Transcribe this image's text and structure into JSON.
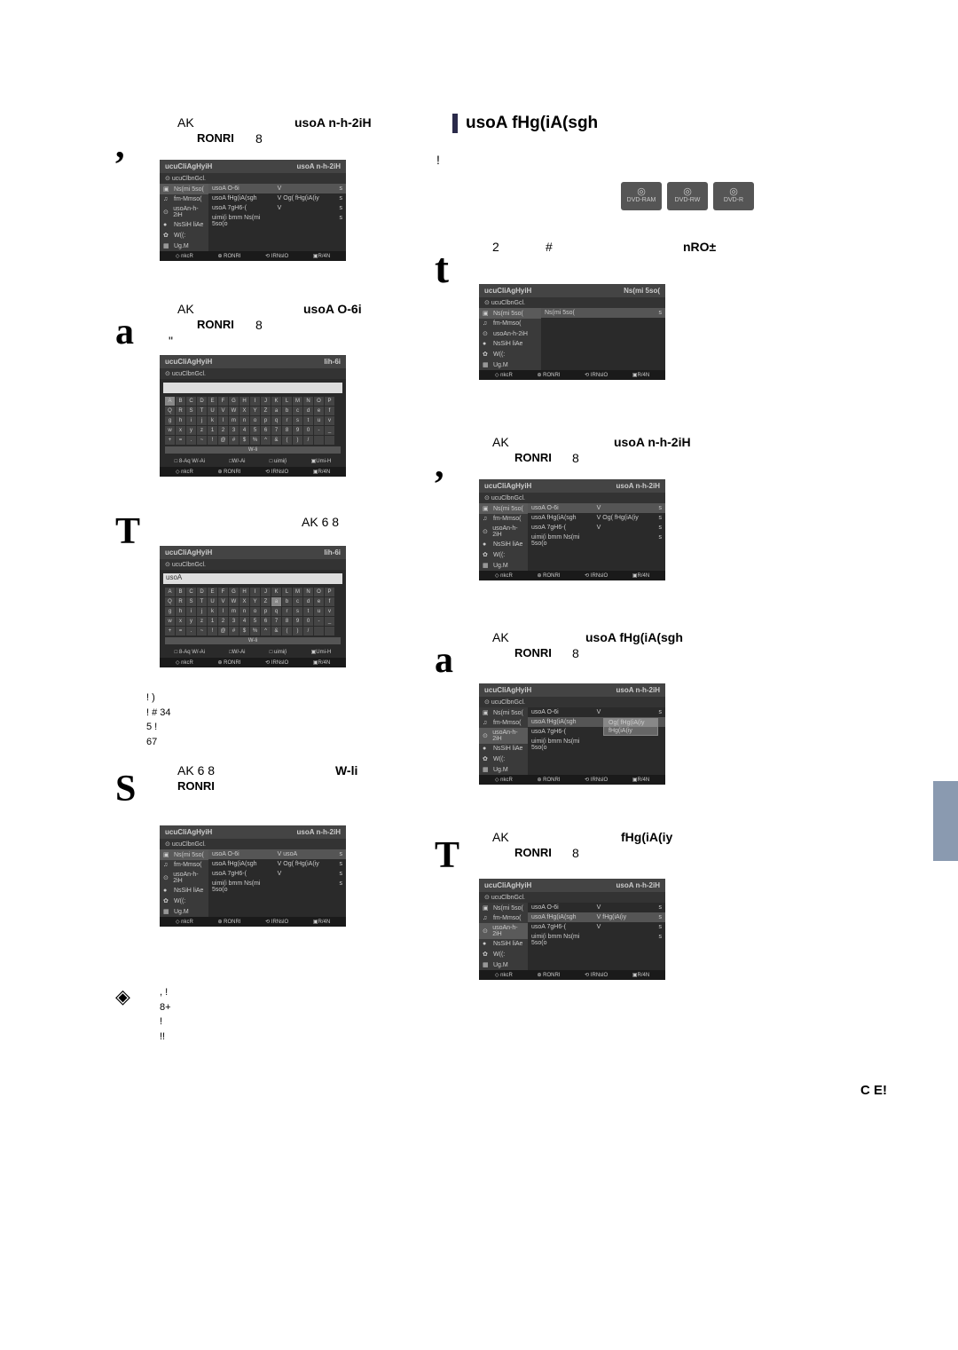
{
  "left": {
    "step2": {
      "marker": ",",
      "line1a": "AK",
      "line1b": "usoA n-h-2iH",
      "press": "RONRI",
      "press_after": "8"
    },
    "step3": {
      "marker": "a",
      "line1a": "AK",
      "line1b": "usoA O-6i",
      "press": "RONRI",
      "press_after": "8",
      "quote": "\""
    },
    "step4": {
      "marker": "T",
      "line": "AK 6 8"
    },
    "note_lines": [
      "!                )",
      "!                    #    34",
      "5        !",
      "67"
    ],
    "step5": {
      "marker": "S",
      "line1a": "AK 6 8",
      "line1b": "W-li",
      "press": "RONRI"
    },
    "tip": {
      "icon": "◈",
      "lines": [
        ",                           !",
        "8+",
        "!",
        "!!"
      ]
    }
  },
  "right": {
    "section_title": "usoA fHg(iA(sgh",
    "intro_excl": "!",
    "step1": {
      "marker": "t",
      "a": "2",
      "b": "#",
      "c": "nRO±"
    },
    "step2": {
      "marker": ",",
      "line1a": "AK",
      "line1b": "usoA n-h-2iH",
      "press": "RONRI",
      "press_after": "8"
    },
    "step3": {
      "marker": "a",
      "line1a": "AK",
      "line1b": "usoA fHg(iA(sgh",
      "press": "RONRI",
      "press_after": "8"
    },
    "step4": {
      "marker": "T",
      "line1a": "AK",
      "line1b": "fHg(iA(iy",
      "press": "RONRI",
      "press_after": "8"
    },
    "discs": [
      "DVD-RAM",
      "DVD-RW",
      "DVD-R"
    ]
  },
  "panel": {
    "title": "ucuCliAgHyiH",
    "sub": "ucuClbnGcl.",
    "side_items": [
      {
        "icon": "▣",
        "label": "Ns(mi 5so("
      },
      {
        "icon": "♫",
        "label": "fm-Mmso("
      },
      {
        "icon": "⊙",
        "label": "usoAn-h-2iH"
      },
      {
        "icon": "●",
        "label": "NsSiH liAe"
      },
      {
        "icon": "✿",
        "label": "W((:"
      },
      {
        "icon": "▦",
        "label": "Ug.M"
      }
    ],
    "opts": [
      {
        "label": "usoA O-6i",
        "val": "V",
        "end": "s"
      },
      {
        "label": "usoA fHg(iA(sgh",
        "val": "V Og( fHg(iA(iy",
        "end": "s"
      },
      {
        "label": "usoA 7gH6-(",
        "val": "V",
        "end": "s"
      },
      {
        "label": "uimi(i bmm Ns(mi 5so(o",
        "val": "",
        "end": "s"
      }
    ],
    "opts_name": [
      {
        "label": "usoA O-6i",
        "val": "V usoA",
        "end": "s"
      },
      {
        "label": "usoA fHg(iA(sgh",
        "val": "V Og( fHg(iA(iy",
        "end": "s"
      },
      {
        "label": "usoA 7gH6-(",
        "val": "V",
        "end": "s"
      },
      {
        "label": "uimi(i bmm Ns(mi 5so(o",
        "val": "",
        "end": "s"
      }
    ],
    "foot": [
      "◇ nkcR",
      "⊕ RONRI",
      "⟲ IRNslO",
      "▣R/4N"
    ],
    "header_r1": "usoA n-h-2iH",
    "header_r2": "lih-6i",
    "header_r3": "Ns(mi 5so("
  },
  "kbd": {
    "row1": [
      "A",
      "B",
      "C",
      "D",
      "E",
      "F",
      "G",
      "H",
      "I",
      "J",
      "K",
      "L",
      "M",
      "N",
      "O",
      "P"
    ],
    "row2": [
      "Q",
      "R",
      "S",
      "T",
      "U",
      "V",
      "W",
      "X",
      "Y",
      "Z",
      "a",
      "b",
      "c",
      "d",
      "e",
      "f"
    ],
    "row3": [
      "g",
      "h",
      "i",
      "j",
      "k",
      "l",
      "m",
      "n",
      "o",
      "p",
      "q",
      "r",
      "s",
      "t",
      "u",
      "v"
    ],
    "row4": [
      "w",
      "x",
      "y",
      "z",
      "1",
      "2",
      "3",
      "4",
      "5",
      "6",
      "7",
      "8",
      "9",
      "0",
      "-",
      "_"
    ],
    "row5": [
      "+",
      "=",
      ".",
      "~",
      "!",
      "@",
      "#",
      "$",
      "%",
      "^",
      "&",
      "(",
      ")",
      "/",
      "",
      ""
    ],
    "wide": "W-li",
    "actions": [
      "□ 8-Aq W/-Ai",
      "□W/-Ai",
      "□ uimi(i",
      "▣Umi-H"
    ],
    "input2": "usoA"
  },
  "dropdown": {
    "items": [
      "Og( fHg(iA(iy",
      "fHg(iA(iy"
    ]
  },
  "footer": {
    "corner": "C E!"
  }
}
